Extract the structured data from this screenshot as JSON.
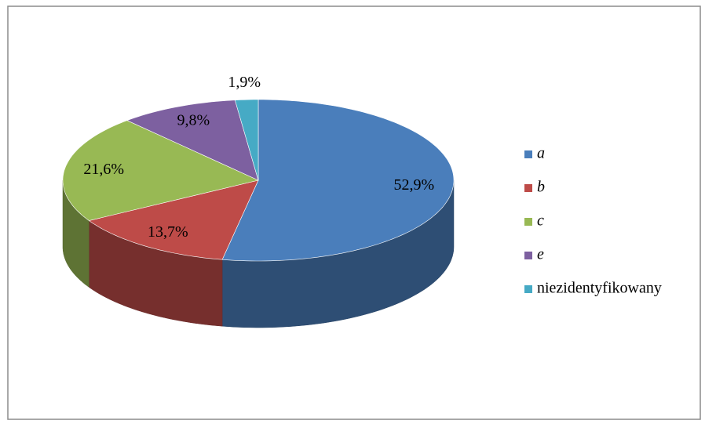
{
  "chart_data": {
    "type": "pie",
    "categories": [
      "a",
      "b",
      "c",
      "e",
      "niezidentyfikowany"
    ],
    "values": [
      52.9,
      13.7,
      21.6,
      9.8,
      1.9
    ],
    "value_labels": [
      "52,9%",
      "13,7%",
      "21,6%",
      "9,8%",
      "1,9%"
    ],
    "colors": [
      "#4a7ebb",
      "#be4b48",
      "#98b954",
      "#7d60a0",
      "#46aac5"
    ],
    "legend": "right"
  }
}
